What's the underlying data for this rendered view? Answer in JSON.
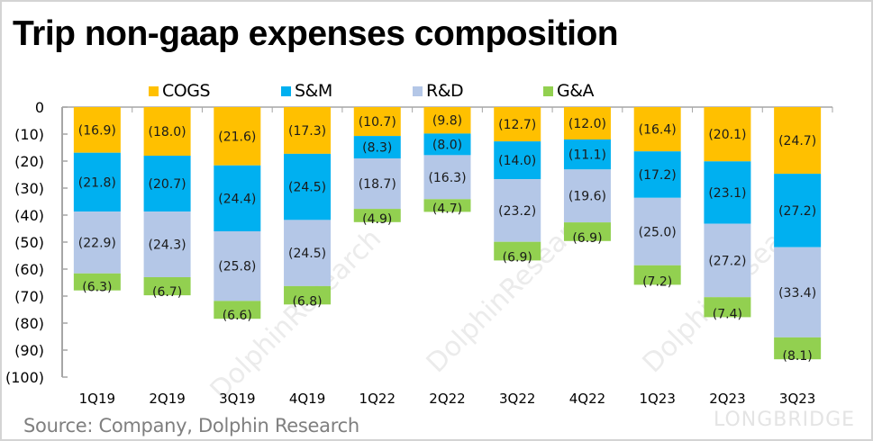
{
  "title": "Trip non-gaap expenses composition",
  "source": "Source: Company, Dolphin Research",
  "watermarks": {
    "brand": "LONGBRIDGE",
    "text": "DolphinResearch"
  },
  "chart_data": {
    "type": "bar",
    "stacked": true,
    "title": "Trip non-gaap expenses composition",
    "xlabel": "",
    "ylabel": "",
    "ylim": [
      -100,
      0
    ],
    "yticks": [
      0,
      -10,
      -20,
      -30,
      -40,
      -50,
      -60,
      -70,
      -80,
      -90,
      -100
    ],
    "ytick_labels": [
      "0",
      "(10)",
      "(20)",
      "(30)",
      "(40)",
      "(50)",
      "(60)",
      "(70)",
      "(80)",
      "(90)",
      "(100)"
    ],
    "grid": false,
    "legend_position": "top",
    "categories": [
      "1Q19",
      "2Q19",
      "3Q19",
      "4Q19",
      "1Q22",
      "2Q22",
      "3Q22",
      "4Q22",
      "1Q23",
      "2Q23",
      "3Q23"
    ],
    "series": [
      {
        "name": "COGS",
        "color": "#ffc000",
        "values": [
          -16.9,
          -18.0,
          -21.6,
          -17.3,
          -10.7,
          -9.8,
          -12.7,
          -12.0,
          -16.4,
          -20.1,
          -24.7
        ],
        "labels": [
          "(16.9)",
          "(18.0)",
          "(21.6)",
          "(17.3)",
          "(10.7)",
          "(9.8)",
          "(12.7)",
          "(12.0)",
          "(16.4)",
          "(20.1)",
          "(24.7)"
        ]
      },
      {
        "name": "S&M",
        "color": "#00b0f0",
        "values": [
          -21.8,
          -20.7,
          -24.4,
          -24.5,
          -8.3,
          -8.0,
          -14.0,
          -11.1,
          -17.2,
          -23.1,
          -27.2
        ],
        "labels": [
          "(21.8)",
          "(20.7)",
          "(24.4)",
          "(24.5)",
          "(8.3)",
          "(8.0)",
          "(14.0)",
          "(11.1)",
          "(17.2)",
          "(23.1)",
          "(27.2)"
        ]
      },
      {
        "name": "R&D",
        "color": "#b4c7e7",
        "values": [
          -22.9,
          -24.3,
          -25.8,
          -24.5,
          -18.7,
          -16.3,
          -23.2,
          -19.6,
          -25.0,
          -27.2,
          -33.4
        ],
        "labels": [
          "(22.9)",
          "(24.3)",
          "(25.8)",
          "(24.5)",
          "(18.7)",
          "(16.3)",
          "(23.2)",
          "(19.6)",
          "(25.0)",
          "(27.2)",
          "(33.4)"
        ]
      },
      {
        "name": "G&A",
        "color": "#92d050",
        "values": [
          -6.3,
          -6.7,
          -6.6,
          -6.8,
          -4.9,
          -4.7,
          -6.9,
          -6.9,
          -7.2,
          -7.4,
          -8.1
        ],
        "labels": [
          "(6.3)",
          "(6.7)",
          "(6.6)",
          "(6.8)",
          "(4.9)",
          "(4.7)",
          "(6.9)",
          "(6.9)",
          "(7.2)",
          "(7.4)",
          "(8.1)"
        ]
      }
    ]
  }
}
